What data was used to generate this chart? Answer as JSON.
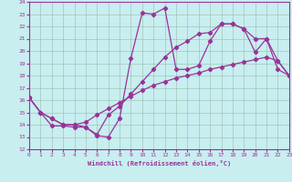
{
  "bg_color": "#c8eef0",
  "line_color": "#993399",
  "xlabel": "Windchill (Refroidissement éolien,°C)",
  "xmin": 0,
  "xmax": 23,
  "ymin": 12,
  "ymax": 24,
  "curve1_x": [
    0,
    1,
    2,
    3,
    4,
    5,
    6,
    7,
    8,
    9,
    10,
    11,
    12,
    13,
    14,
    15,
    16,
    17,
    18,
    19,
    20,
    21,
    22,
    23
  ],
  "curve1_y": [
    16.2,
    15.0,
    13.9,
    13.9,
    13.8,
    13.8,
    13.1,
    13.0,
    14.5,
    19.4,
    23.1,
    23.0,
    23.5,
    18.5,
    18.5,
    18.8,
    20.8,
    22.2,
    22.2,
    21.8,
    19.9,
    21.0,
    18.5,
    18.0
  ],
  "curve2_x": [
    0,
    1,
    2,
    3,
    4,
    5,
    6,
    7,
    8,
    9,
    10,
    11,
    12,
    13,
    14,
    15,
    16,
    17,
    18,
    19,
    20,
    21,
    22,
    23
  ],
  "curve2_y": [
    16.2,
    15.0,
    14.5,
    14.0,
    14.0,
    13.8,
    13.2,
    14.8,
    15.5,
    16.5,
    17.5,
    18.5,
    19.5,
    20.3,
    20.8,
    21.4,
    21.5,
    22.2,
    22.2,
    21.8,
    21.0,
    21.0,
    19.2,
    18.0
  ],
  "curve3_x": [
    0,
    1,
    2,
    3,
    4,
    5,
    6,
    7,
    8,
    9,
    10,
    11,
    12,
    13,
    14,
    15,
    16,
    17,
    18,
    19,
    20,
    21,
    22,
    23
  ],
  "curve3_y": [
    16.2,
    15.0,
    14.5,
    14.0,
    14.0,
    14.2,
    14.8,
    15.3,
    15.8,
    16.3,
    16.8,
    17.2,
    17.5,
    17.8,
    18.0,
    18.2,
    18.5,
    18.7,
    18.9,
    19.1,
    19.3,
    19.5,
    19.2,
    18.0
  ],
  "grid_color": "#99bbaa",
  "spine_color": "#993399",
  "tick_labelsize": 4.5,
  "xlabel_fontsize": 5.0,
  "linewidth": 0.9,
  "markersize": 2.2
}
